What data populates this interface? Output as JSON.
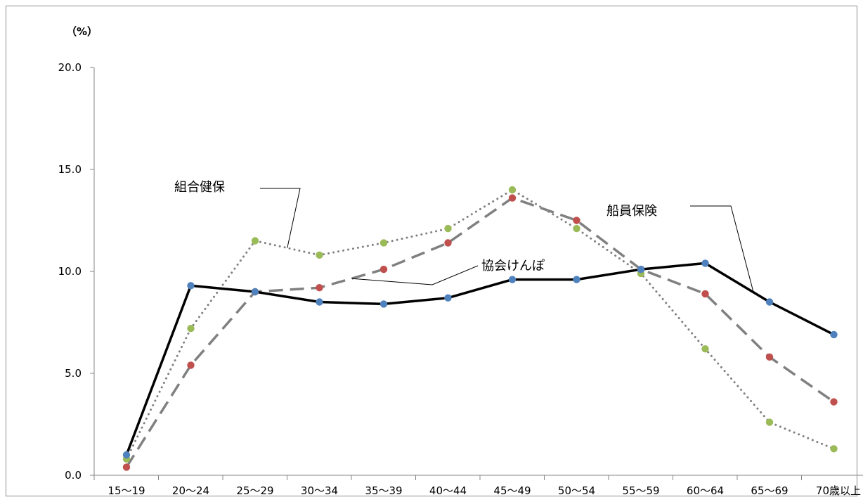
{
  "chart_data": {
    "type": "line",
    "title": "",
    "xlabel": "",
    "ylabel": "",
    "unit_label": "（%）",
    "categories": [
      "15〜19",
      "20〜24",
      "25〜29",
      "30〜34",
      "35〜39",
      "40〜44",
      "45〜49",
      "50〜54",
      "55〜59",
      "60〜64",
      "65〜69",
      "70歳以上"
    ],
    "ylim": [
      0,
      20
    ],
    "y_ticks": [
      "0.0",
      "5.0",
      "10.0",
      "15.0",
      "20.0"
    ],
    "grid": false,
    "legend": "none (inline callout labels)",
    "series": [
      {
        "name": "船員保険",
        "line_style": "solid",
        "line_color": "#000000",
        "marker_color": "#4F81BD",
        "values": [
          1.0,
          9.3,
          9.0,
          8.5,
          8.4,
          8.7,
          9.6,
          9.6,
          10.1,
          10.4,
          8.5,
          6.9
        ]
      },
      {
        "name": "協会けんぽ",
        "line_style": "dashed",
        "line_color": "#808080",
        "marker_color": "#C0504D",
        "values": [
          0.4,
          5.4,
          9.0,
          9.2,
          10.1,
          11.4,
          13.6,
          12.5,
          10.1,
          8.9,
          5.8,
          3.6
        ]
      },
      {
        "name": "組合健保",
        "line_style": "dotted",
        "line_color": "#808080",
        "marker_color": "#9BBB59",
        "values": [
          0.8,
          7.2,
          11.5,
          10.8,
          11.4,
          12.1,
          14.0,
          12.1,
          9.9,
          6.2,
          2.6,
          1.3
        ]
      }
    ],
    "annotations": [
      {
        "series": "組合健保",
        "text": "組合健保",
        "category_index": 2.5
      },
      {
        "series": "協会けんぽ",
        "text": "協会けんぽ",
        "category_index": 3.5
      },
      {
        "series": "船員保険",
        "text": "船員保険",
        "category_index": 9.75
      }
    ]
  }
}
